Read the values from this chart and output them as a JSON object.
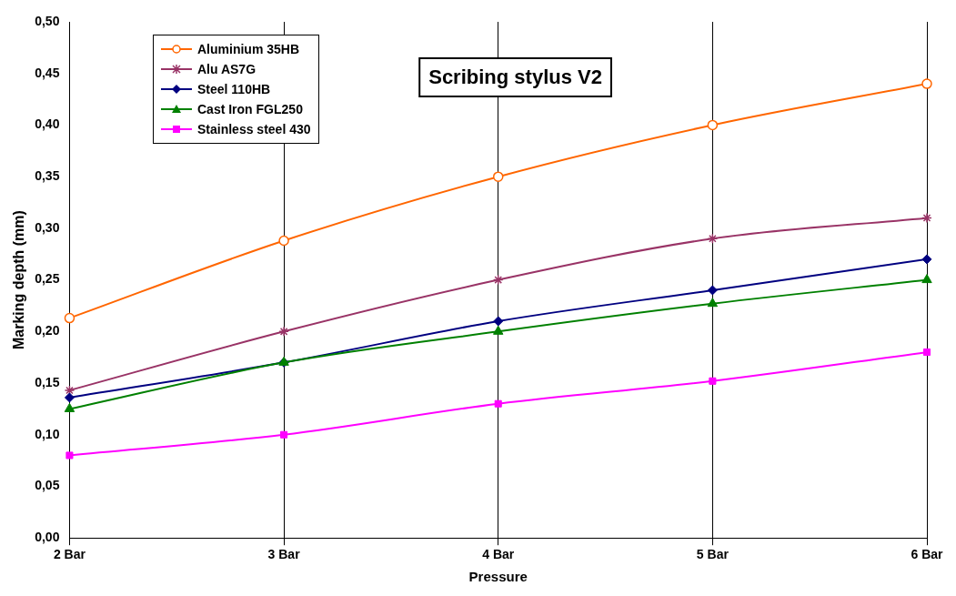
{
  "chart_data": {
    "type": "line",
    "title": "Scribing stylus V2",
    "xlabel": "Pressure",
    "ylabel": "Marking depth (mm)",
    "categories": [
      "2 Bar",
      "3 Bar",
      "4 Bar",
      "5 Bar",
      "6 Bar"
    ],
    "ylim": [
      0,
      0.5
    ],
    "yticks": [
      {
        "value": 0,
        "label": "0,00"
      },
      {
        "value": 0.05,
        "label": "0,05"
      },
      {
        "value": 0.1,
        "label": "0,10"
      },
      {
        "value": 0.15,
        "label": "0,15"
      },
      {
        "value": 0.2,
        "label": "0,20"
      },
      {
        "value": 0.25,
        "label": "0,25"
      },
      {
        "value": 0.3,
        "label": "0,30"
      },
      {
        "value": 0.35,
        "label": "0,35"
      },
      {
        "value": 0.4,
        "label": "0,40"
      },
      {
        "value": 0.45,
        "label": "0,45"
      },
      {
        "value": 0.5,
        "label": "0,50"
      }
    ],
    "grid": "x",
    "legend": "top left",
    "series": [
      {
        "name": "Aluminium 35HB",
        "color": "#ff6600",
        "marker": "circle",
        "values": [
          0.213,
          0.288,
          0.35,
          0.4,
          0.44
        ]
      },
      {
        "name": "Alu AS7G",
        "color": "#993366",
        "marker": "cross",
        "values": [
          0.143,
          0.2,
          0.25,
          0.29,
          0.31
        ]
      },
      {
        "name": "Steel 110HB",
        "color": "#000080",
        "marker": "diamond",
        "values": [
          0.136,
          0.17,
          0.21,
          0.24,
          0.27
        ]
      },
      {
        "name": "Cast Iron FGL250",
        "color": "#008000",
        "marker": "triangle",
        "values": [
          0.125,
          0.17,
          0.2,
          0.227,
          0.25
        ]
      },
      {
        "name": "Stainless steel 430",
        "color": "#ff00ff",
        "marker": "square",
        "values": [
          0.08,
          0.1,
          0.13,
          0.152,
          0.18
        ]
      }
    ]
  }
}
